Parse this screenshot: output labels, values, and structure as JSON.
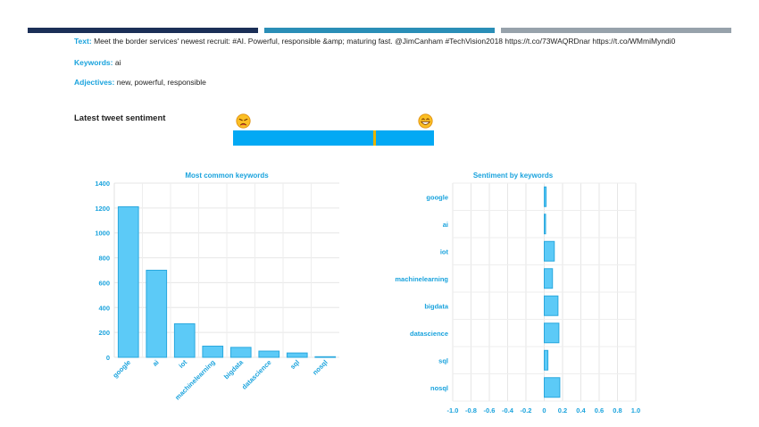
{
  "tweet": {
    "text_label": "Text:",
    "text_value": "Meet the border services' newest recruit: #AI. Powerful, responsible &amp; maturing fast. @JimCanham #TechVision2018 https://t.co/73WAQRDnar https://t.co/WMmiMyndi0",
    "keywords_label": "Keywords:",
    "keywords_value": "ai",
    "adjectives_label": "Adjectives:",
    "adjectives_value": "new, powerful, responsible"
  },
  "sentiment": {
    "title": "Latest tweet sentiment",
    "value": 0.41,
    "bar_color": "#03a9f4",
    "marker_color": "#e6b400",
    "left_icon": "sad-face-icon",
    "right_icon": "happy-face-icon"
  },
  "chart_data": [
    {
      "type": "bar",
      "title": "Most common keywords",
      "categories": [
        "google",
        "ai",
        "iot",
        "machinelearning",
        "bigdata",
        "datascience",
        "sql",
        "nosql"
      ],
      "values": [
        1210,
        700,
        270,
        90,
        80,
        50,
        35,
        5
      ],
      "ylim": [
        0,
        1400
      ],
      "yticks": [
        0,
        200,
        400,
        600,
        800,
        1000,
        1200,
        1400
      ],
      "grid": true,
      "bar_fill": "#5ccaf7",
      "bar_stroke": "#2aa8de",
      "label_color": "#1aa3dd"
    },
    {
      "type": "bar",
      "orientation": "horizontal",
      "title": "Sentiment by keywords",
      "categories": [
        "google",
        "ai",
        "iot",
        "machinelearning",
        "bigdata",
        "datascience",
        "sql",
        "nosql"
      ],
      "values": [
        0.02,
        0.01,
        0.11,
        0.09,
        0.15,
        0.16,
        0.04,
        0.17
      ],
      "xlim": [
        -1.0,
        1.0
      ],
      "xticks": [
        "-1.0",
        "-0.8",
        "-0.6",
        "-0.4",
        "-0.2",
        "0",
        "0.2",
        "0.4",
        "0.6",
        "0.8",
        "1.0"
      ],
      "grid": true,
      "bar_fill": "#5ccaf7",
      "bar_stroke": "#2aa8de",
      "label_color": "#1aa3dd"
    }
  ]
}
